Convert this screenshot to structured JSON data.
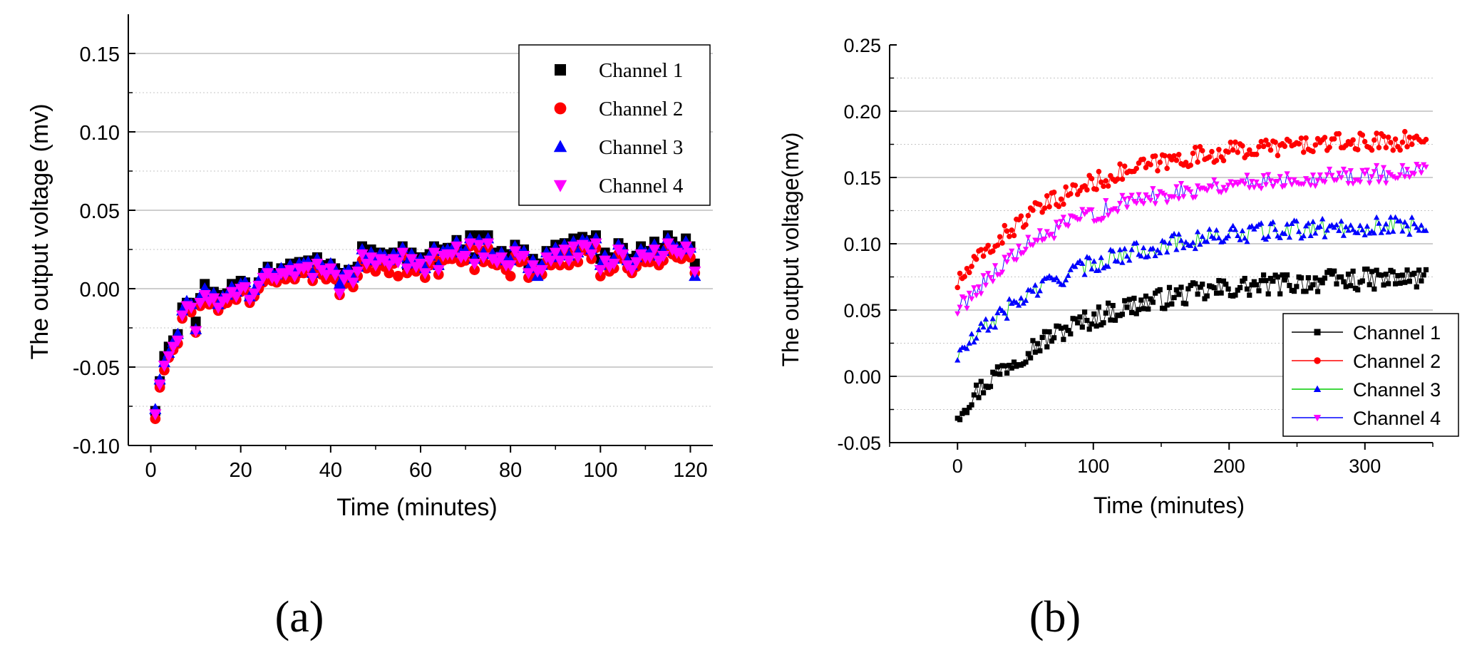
{
  "chart_data": [
    {
      "type": "scatter",
      "panel_label": "(a)",
      "title": "",
      "xlabel": "Time (minutes)",
      "ylabel": "The output voltage  (mv)",
      "xlim": [
        -5,
        125
      ],
      "ylim": [
        -0.1,
        0.175
      ],
      "xticks": [
        0,
        20,
        40,
        60,
        80,
        100,
        120
      ],
      "xtick_labels": [
        "0",
        "20",
        "40",
        "60",
        "80",
        "100",
        "120"
      ],
      "yticks": [
        -0.1,
        -0.05,
        0.0,
        0.05,
        0.1,
        0.15
      ],
      "ytick_labels": [
        "-0.10",
        "-0.05",
        "0.00",
        "0.05",
        "0.10",
        "0.15"
      ],
      "grid": true,
      "legend_position": "top-right",
      "x_start": 1,
      "x_step": 1,
      "series": [
        {
          "name": "Channel 1",
          "marker": "square",
          "color": "#000000",
          "values": [
            -0.078,
            -0.059,
            -0.043,
            -0.037,
            -0.033,
            -0.029,
            -0.012,
            -0.009,
            -0.009,
            -0.021,
            -0.006,
            0.003,
            -0.004,
            -0.002,
            -0.01,
            -0.004,
            -0.003,
            0.003,
            -0.001,
            0.005,
            0.004,
            -0.006,
            -0.003,
            0.004,
            0.01,
            0.014,
            0.01,
            0.009,
            0.013,
            0.012,
            0.016,
            0.012,
            0.017,
            0.017,
            0.018,
            0.01,
            0.02,
            0.015,
            0.012,
            0.016,
            0.013,
            0.002,
            0.01,
            0.012,
            0.007,
            0.014,
            0.027,
            0.02,
            0.025,
            0.018,
            0.023,
            0.022,
            0.02,
            0.023,
            0.023,
            0.027,
            0.015,
            0.023,
            0.016,
            0.02,
            0.013,
            0.022,
            0.027,
            0.015,
            0.025,
            0.026,
            0.026,
            0.031,
            0.024,
            0.025,
            0.034,
            0.02,
            0.034,
            0.024,
            0.034,
            0.023,
            0.021,
            0.024,
            0.019,
            0.022,
            0.028,
            0.024,
            0.025,
            0.014,
            0.019,
            0.016,
            0.016,
            0.024,
            0.021,
            0.028,
            0.022,
            0.029,
            0.022,
            0.032,
            0.024,
            0.033,
            0.031,
            0.026,
            0.034,
            0.019,
            0.023,
            0.018,
            0.02,
            0.029,
            0.026,
            0.019,
            0.016,
            0.021,
            0.027,
            0.024,
            0.024,
            0.03,
            0.022,
            0.026,
            0.034,
            0.03,
            0.027,
            0.026,
            0.032,
            0.027,
            0.016
          ]
        },
        {
          "name": "Channel 2",
          "marker": "circle",
          "color": "#ff0000",
          "values": [
            -0.083,
            -0.063,
            -0.052,
            -0.044,
            -0.039,
            -0.035,
            -0.019,
            -0.012,
            -0.015,
            -0.028,
            -0.011,
            -0.006,
            -0.01,
            -0.008,
            -0.014,
            -0.01,
            -0.009,
            -0.004,
            -0.007,
            -0.002,
            -0.001,
            -0.009,
            -0.005,
            0.0,
            0.004,
            0.008,
            0.005,
            0.004,
            0.007,
            0.006,
            0.01,
            0.006,
            0.01,
            0.01,
            0.011,
            0.005,
            0.013,
            0.009,
            0.006,
            0.01,
            0.006,
            -0.004,
            0.003,
            0.006,
            0.001,
            0.008,
            0.018,
            0.013,
            0.017,
            0.011,
            0.016,
            0.014,
            0.01,
            0.016,
            0.008,
            0.021,
            0.01,
            0.016,
            0.011,
            0.013,
            0.007,
            0.015,
            0.02,
            0.009,
            0.018,
            0.019,
            0.019,
            0.023,
            0.017,
            0.018,
            0.027,
            0.012,
            0.025,
            0.017,
            0.026,
            0.016,
            0.015,
            0.017,
            0.012,
            0.008,
            0.021,
            0.017,
            0.018,
            0.007,
            0.012,
            0.01,
            0.009,
            0.017,
            0.015,
            0.02,
            0.015,
            0.022,
            0.015,
            0.024,
            0.017,
            0.025,
            0.024,
            0.019,
            0.026,
            0.008,
            0.016,
            0.011,
            0.013,
            0.022,
            0.019,
            0.013,
            0.01,
            0.014,
            0.019,
            0.017,
            0.017,
            0.022,
            0.015,
            0.018,
            0.026,
            0.022,
            0.02,
            0.019,
            0.024,
            0.02,
            0.01
          ]
        },
        {
          "name": "Channel 3",
          "marker": "triangle-up",
          "color": "#0000ff",
          "values": [
            -0.077,
            -0.058,
            -0.047,
            -0.041,
            -0.034,
            -0.029,
            -0.014,
            -0.008,
            -0.01,
            -0.026,
            -0.005,
            0.0,
            -0.004,
            -0.003,
            -0.01,
            -0.005,
            -0.004,
            0.001,
            -0.002,
            0.003,
            0.004,
            -0.005,
            -0.001,
            0.005,
            0.01,
            0.013,
            0.01,
            0.009,
            0.013,
            0.011,
            0.015,
            0.011,
            0.016,
            0.016,
            0.017,
            0.01,
            0.019,
            0.015,
            0.012,
            0.016,
            0.012,
            0.003,
            0.01,
            0.012,
            0.007,
            0.014,
            0.025,
            0.019,
            0.023,
            0.018,
            0.022,
            0.021,
            0.018,
            0.022,
            0.02,
            0.026,
            0.016,
            0.022,
            0.017,
            0.019,
            0.013,
            0.021,
            0.026,
            0.015,
            0.024,
            0.025,
            0.025,
            0.03,
            0.023,
            0.024,
            0.032,
            0.019,
            0.031,
            0.023,
            0.032,
            0.022,
            0.02,
            0.023,
            0.018,
            0.018,
            0.027,
            0.023,
            0.024,
            0.013,
            0.018,
            0.008,
            0.015,
            0.023,
            0.02,
            0.026,
            0.021,
            0.028,
            0.021,
            0.03,
            0.023,
            0.031,
            0.03,
            0.025,
            0.032,
            0.015,
            0.021,
            0.017,
            0.019,
            0.028,
            0.025,
            0.018,
            0.015,
            0.02,
            0.025,
            0.023,
            0.023,
            0.028,
            0.021,
            0.024,
            0.032,
            0.028,
            0.026,
            0.025,
            0.03,
            0.026,
            0.008
          ]
        },
        {
          "name": "Channel 4",
          "marker": "triangle-down",
          "color": "#ff00ff",
          "values": [
            -0.08,
            -0.061,
            -0.049,
            -0.043,
            -0.037,
            -0.033,
            -0.017,
            -0.011,
            -0.012,
            -0.027,
            -0.009,
            -0.004,
            -0.008,
            -0.006,
            -0.012,
            -0.008,
            -0.006,
            -0.002,
            -0.005,
            0.0,
            0.001,
            -0.007,
            -0.003,
            0.002,
            0.007,
            0.01,
            0.007,
            0.006,
            0.01,
            0.009,
            0.012,
            0.008,
            0.013,
            0.013,
            0.014,
            0.007,
            0.016,
            0.012,
            0.009,
            0.013,
            0.009,
            -0.003,
            0.006,
            0.009,
            0.004,
            0.011,
            0.022,
            0.016,
            0.02,
            0.015,
            0.019,
            0.018,
            0.015,
            0.019,
            0.017,
            0.023,
            0.013,
            0.019,
            0.014,
            0.016,
            0.01,
            0.018,
            0.023,
            0.012,
            0.021,
            0.022,
            0.022,
            0.027,
            0.02,
            0.021,
            0.029,
            0.016,
            0.028,
            0.02,
            0.029,
            0.019,
            0.017,
            0.02,
            0.015,
            0.015,
            0.024,
            0.02,
            0.021,
            0.01,
            0.015,
            0.011,
            0.012,
            0.02,
            0.018,
            0.023,
            0.018,
            0.025,
            0.018,
            0.027,
            0.02,
            0.028,
            0.027,
            0.022,
            0.029,
            0.012,
            0.018,
            0.014,
            0.016,
            0.025,
            0.022,
            0.015,
            0.012,
            0.017,
            0.022,
            0.02,
            0.02,
            0.025,
            0.018,
            0.021,
            0.029,
            0.025,
            0.023,
            0.022,
            0.027,
            0.023,
            0.011
          ]
        }
      ]
    },
    {
      "type": "line",
      "panel_label": "(b)",
      "title": "",
      "xlabel": "Time (minutes)",
      "ylabel": "The output voltage(mv)",
      "xlim": [
        -50,
        350
      ],
      "ylim": [
        -0.05,
        0.25
      ],
      "xticks": [
        0,
        100,
        200,
        300
      ],
      "xtick_labels": [
        "0",
        "100",
        "200",
        "300"
      ],
      "yticks": [
        -0.05,
        0.0,
        0.05,
        0.1,
        0.15,
        0.2,
        0.25
      ],
      "ytick_labels": [
        "-0.05",
        "0.00",
        "0.05",
        "0.10",
        "0.15",
        "0.20",
        "0.25"
      ],
      "grid": true,
      "legend_position": "bottom-right",
      "x_start": 0,
      "x_end": 345,
      "points_per_series": 200,
      "series": [
        {
          "name": "Channel 1",
          "marker": "square",
          "color": "#000000",
          "line_color": "#000000",
          "model": {
            "start": -0.028,
            "plateau": 0.076,
            "rate": 0.0118,
            "noise": 0.008
          }
        },
        {
          "name": "Channel 2",
          "marker": "circle",
          "color": "#ff0000",
          "line_color": "#ff0000",
          "model": {
            "start": 0.07,
            "plateau": 0.18,
            "rate": 0.0118,
            "noise": 0.007
          }
        },
        {
          "name": "Channel 3",
          "marker": "triangle-up",
          "color": "#0000ff",
          "line_color": "#00cc00",
          "model": {
            "start": 0.015,
            "plateau": 0.116,
            "rate": 0.0118,
            "noise": 0.007
          }
        },
        {
          "name": "Channel 4",
          "marker": "triangle-down",
          "color": "#ff00ff",
          "line_color": "#0000ff",
          "model": {
            "start": 0.05,
            "plateau": 0.155,
            "rate": 0.0118,
            "noise": 0.007
          }
        }
      ]
    }
  ]
}
